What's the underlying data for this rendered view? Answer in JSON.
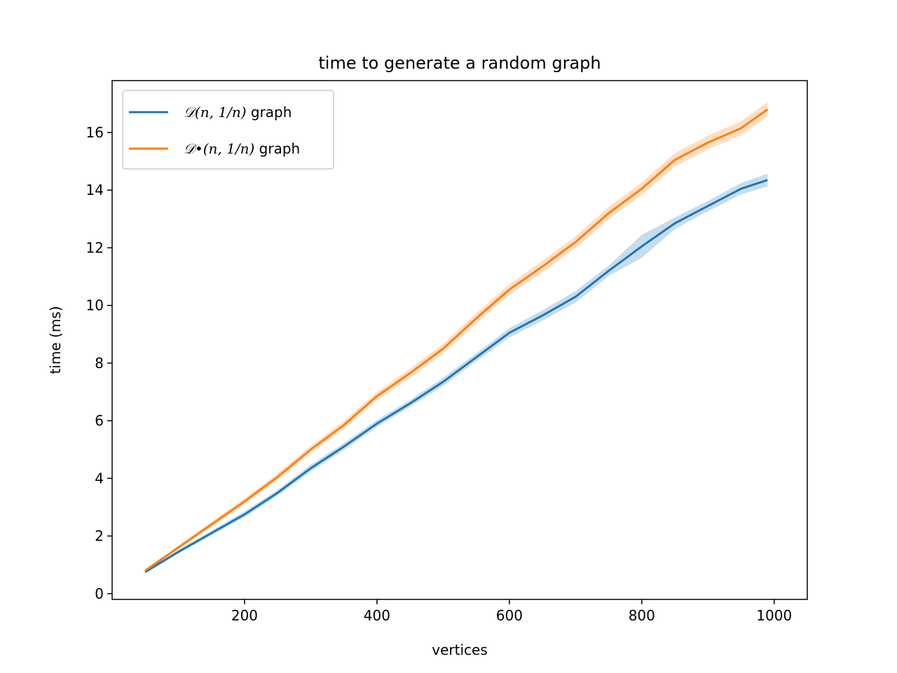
{
  "chart_data": {
    "type": "line",
    "title": "time to generate a random graph",
    "xlabel": "vertices",
    "ylabel": "time (ms)",
    "xlim": [
      0,
      1050
    ],
    "ylim": [
      -0.2,
      17.8
    ],
    "xticks": [
      200,
      400,
      600,
      800,
      1000
    ],
    "yticks": [
      0,
      2,
      4,
      6,
      8,
      10,
      12,
      14,
      16
    ],
    "grid": false,
    "legend_position": "upper-left",
    "series": [
      {
        "name": "𝒟(n, 1/n) graph",
        "legend_math": "𝒟(n, 1/n)",
        "legend_suffix": " graph",
        "color": "#1f77b4",
        "x": [
          50,
          100,
          150,
          200,
          250,
          300,
          350,
          400,
          450,
          500,
          550,
          600,
          650,
          700,
          750,
          800,
          850,
          900,
          950,
          990
        ],
        "y": [
          0.75,
          1.45,
          2.1,
          2.75,
          3.5,
          4.35,
          5.1,
          5.9,
          6.6,
          7.35,
          8.2,
          9.05,
          9.65,
          10.3,
          11.2,
          12.05,
          12.85,
          13.45,
          14.05,
          14.35
        ],
        "band_halfwidth": [
          0.04,
          0.06,
          0.08,
          0.1,
          0.1,
          0.12,
          0.12,
          0.12,
          0.12,
          0.14,
          0.14,
          0.16,
          0.18,
          0.2,
          0.18,
          0.4,
          0.2,
          0.18,
          0.2,
          0.22
        ]
      },
      {
        "name": "𝒟•(n, 1/n) graph",
        "legend_math": "𝒟•(n, 1/n)",
        "legend_suffix": " graph",
        "color": "#ff7f0e",
        "x": [
          50,
          100,
          150,
          200,
          250,
          300,
          350,
          400,
          450,
          500,
          550,
          600,
          650,
          700,
          750,
          800,
          850,
          900,
          950,
          990
        ],
        "y": [
          0.8,
          1.6,
          2.4,
          3.2,
          4.05,
          5.0,
          5.85,
          6.85,
          7.65,
          8.5,
          9.55,
          10.55,
          11.35,
          12.2,
          13.2,
          14.05,
          15.05,
          15.65,
          16.15,
          16.8
        ],
        "band_halfwidth": [
          0.04,
          0.06,
          0.1,
          0.1,
          0.12,
          0.12,
          0.14,
          0.14,
          0.16,
          0.16,
          0.18,
          0.18,
          0.2,
          0.2,
          0.22,
          0.22,
          0.24,
          0.24,
          0.24,
          0.26
        ]
      }
    ]
  }
}
